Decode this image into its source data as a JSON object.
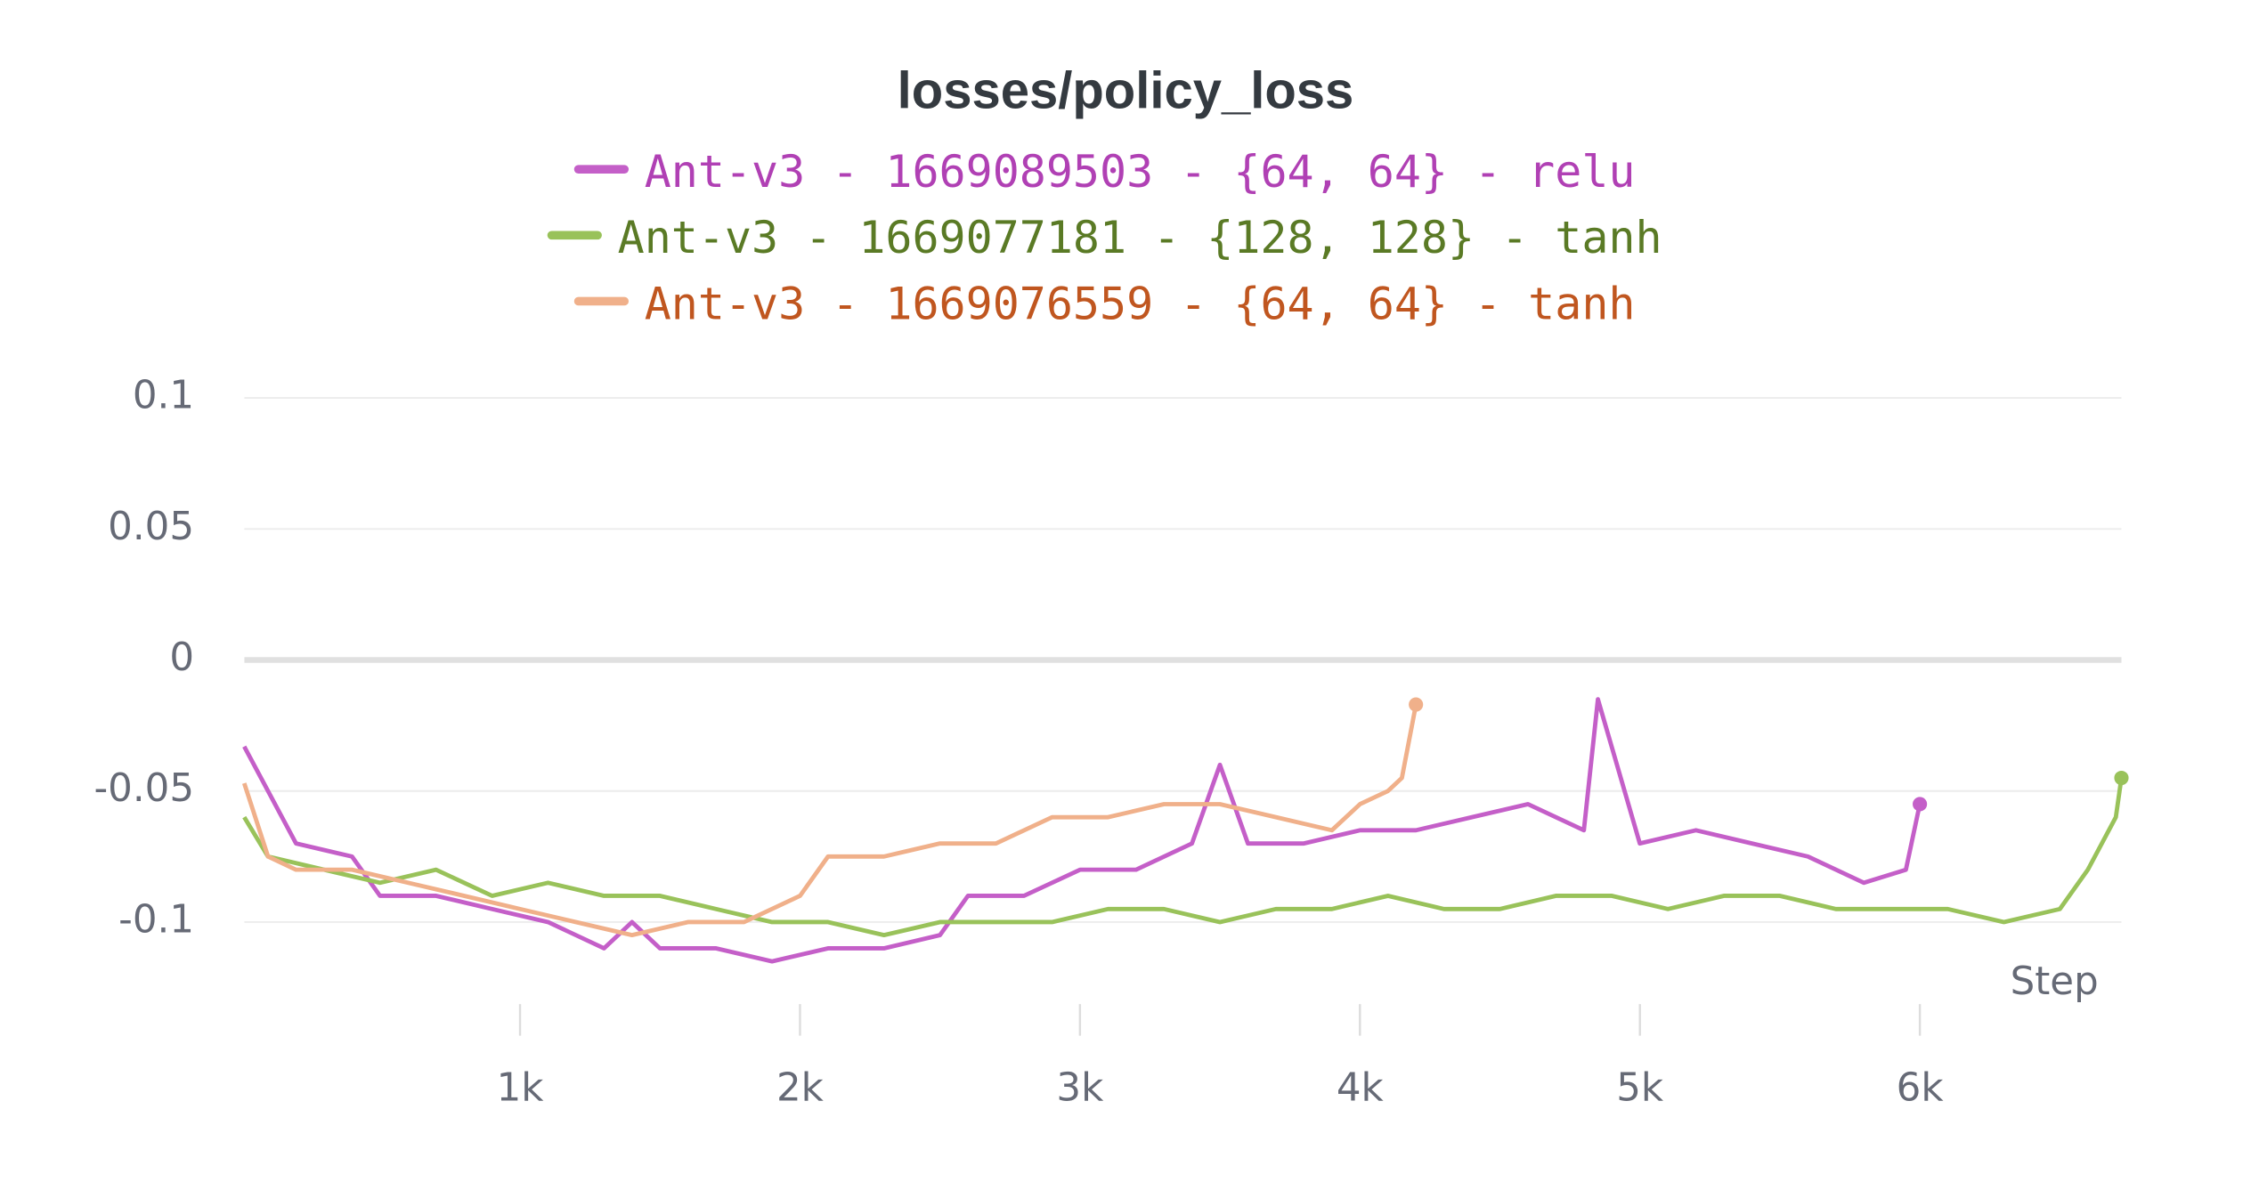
{
  "chart_data": {
    "type": "line",
    "title": "losses/policy_loss",
    "x_label": "Step",
    "xlim": [
      0,
      6720
    ],
    "ylim": [
      -0.145,
      0.115
    ],
    "xticks": [
      {
        "value": 1000,
        "label": "1k"
      },
      {
        "value": 2000,
        "label": "2k"
      },
      {
        "value": 3000,
        "label": "3k"
      },
      {
        "value": 4000,
        "label": "4k"
      },
      {
        "value": 5000,
        "label": "5k"
      },
      {
        "value": 6000,
        "label": "6k"
      }
    ],
    "yticks": [
      0.1,
      0.05,
      0,
      -0.05,
      -0.1
    ],
    "grid": true,
    "series": [
      {
        "name": "Ant-v3 - 1669089503 - {64, 64} - relu",
        "color": "#c45fc8",
        "label_color": "#b040b4",
        "x": [
          15,
          200,
          400,
          500,
          700,
          900,
          1100,
          1300,
          1400,
          1500,
          1700,
          1900,
          2100,
          2300,
          2500,
          2600,
          2800,
          3000,
          3200,
          3400,
          3500,
          3600,
          3800,
          4000,
          4200,
          4400,
          4600,
          4800,
          4850,
          5000,
          5200,
          5400,
          5600,
          5800,
          5950,
          6000
        ],
        "values": [
          -0.033,
          -0.07,
          -0.075,
          -0.09,
          -0.09,
          -0.095,
          -0.1,
          -0.11,
          -0.1,
          -0.11,
          -0.11,
          -0.115,
          -0.11,
          -0.11,
          -0.105,
          -0.09,
          -0.09,
          -0.08,
          -0.08,
          -0.07,
          -0.04,
          -0.07,
          -0.07,
          -0.065,
          -0.065,
          -0.06,
          -0.055,
          -0.065,
          -0.015,
          -0.07,
          -0.065,
          -0.07,
          -0.075,
          -0.085,
          -0.08,
          -0.055
        ]
      },
      {
        "name": "Ant-v3 - 1669077181 - {128, 128} - tanh",
        "color": "#99c25a",
        "label_color": "#5a7a25",
        "x": [
          15,
          100,
          300,
          500,
          700,
          900,
          1100,
          1300,
          1500,
          1700,
          1900,
          2100,
          2300,
          2500,
          2700,
          2900,
          3100,
          3300,
          3500,
          3700,
          3900,
          4100,
          4300,
          4500,
          4700,
          4900,
          5100,
          5300,
          5500,
          5700,
          5900,
          6100,
          6300,
          6500,
          6600,
          6700,
          6720
        ],
        "values": [
          -0.06,
          -0.075,
          -0.08,
          -0.085,
          -0.08,
          -0.09,
          -0.085,
          -0.09,
          -0.09,
          -0.095,
          -0.1,
          -0.1,
          -0.105,
          -0.1,
          -0.1,
          -0.1,
          -0.095,
          -0.095,
          -0.1,
          -0.095,
          -0.095,
          -0.09,
          -0.095,
          -0.095,
          -0.09,
          -0.09,
          -0.095,
          -0.09,
          -0.09,
          -0.095,
          -0.095,
          -0.095,
          -0.1,
          -0.095,
          -0.08,
          -0.06,
          -0.045
        ]
      },
      {
        "name": "Ant-v3 - 1669076559 - {64, 64} - tanh",
        "color": "#f0b08a",
        "label_color": "#c0561f",
        "x": [
          15,
          100,
          200,
          400,
          600,
          800,
          1000,
          1200,
          1400,
          1600,
          1800,
          2000,
          2100,
          2300,
          2500,
          2700,
          2900,
          3100,
          3300,
          3500,
          3700,
          3900,
          4000,
          4100,
          4150,
          4200
        ],
        "values": [
          -0.047,
          -0.075,
          -0.08,
          -0.08,
          -0.085,
          -0.09,
          -0.095,
          -0.1,
          -0.105,
          -0.1,
          -0.1,
          -0.09,
          -0.075,
          -0.075,
          -0.07,
          -0.07,
          -0.06,
          -0.06,
          -0.055,
          -0.055,
          -0.06,
          -0.065,
          -0.055,
          -0.05,
          -0.045,
          -0.017
        ]
      }
    ]
  }
}
